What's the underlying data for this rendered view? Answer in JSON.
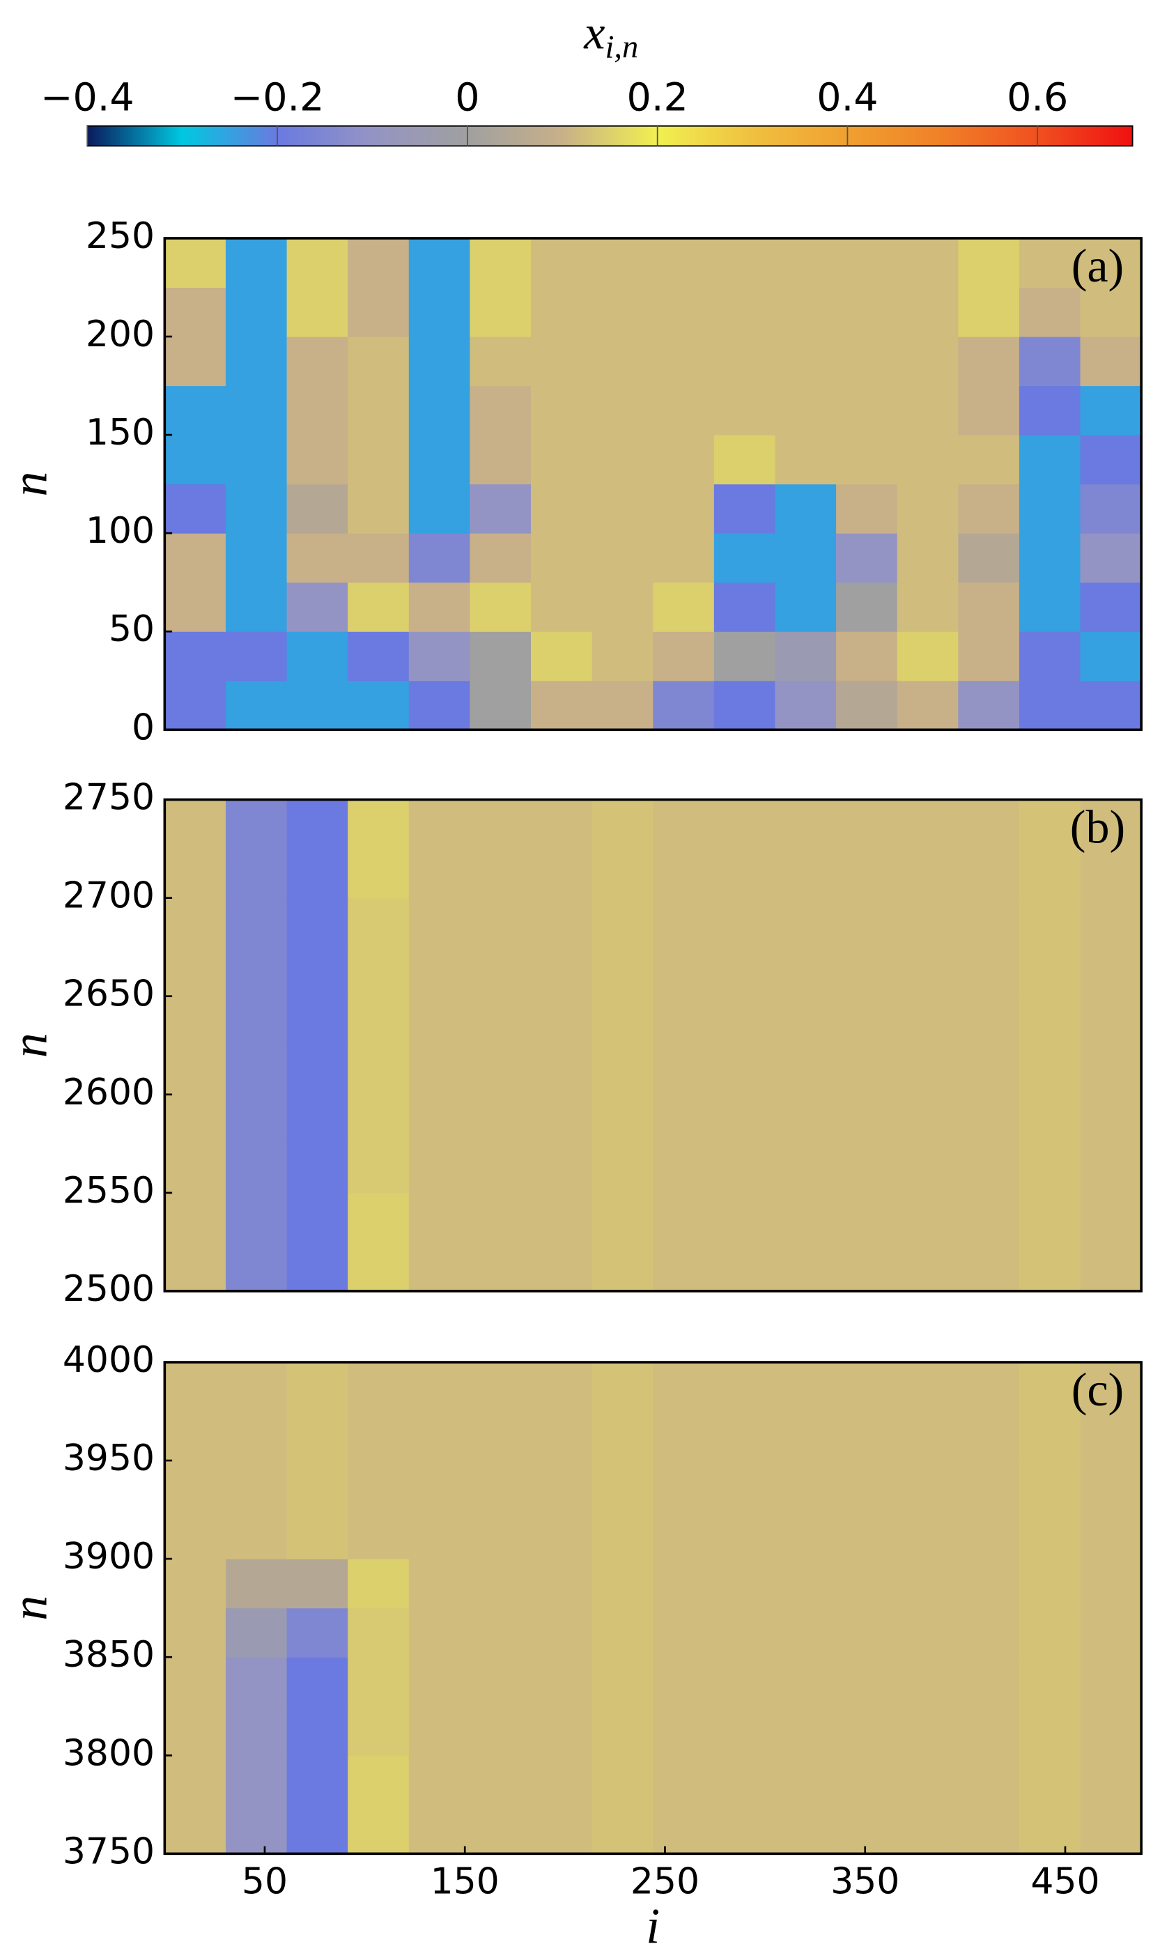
{
  "colorbar": {
    "label": "x",
    "label_sub": "i,n",
    "clim": [
      -0.4,
      0.7
    ],
    "ticks": [
      {
        "value": -0.4,
        "label": "−0.4"
      },
      {
        "value": -0.2,
        "label": "−0.2"
      },
      0,
      0.2,
      0.4,
      0.6
    ],
    "colormap": [
      "#0a1a5c",
      "#00c8e0",
      "#6a7ae0",
      "#9494c4",
      "#a0a0a0",
      "#c8b088",
      "#f0f050",
      "#f0c040",
      "#f0a030",
      "#f08028",
      "#f05020",
      "#f01010"
    ]
  },
  "chart_data": [
    {
      "type": "heatmap",
      "panel_label": "(a)",
      "ylabel": "n",
      "xlim": [
        0,
        488
      ],
      "ylim": [
        0,
        250
      ],
      "yticks": [
        0,
        50,
        100,
        150,
        200,
        250
      ],
      "xbins": [
        0,
        30.5,
        61,
        91.5,
        122,
        152.5,
        183,
        213.5,
        244,
        274.5,
        305,
        335.5,
        366,
        396.5,
        427,
        457.5,
        488
      ],
      "ybins": [
        0,
        25,
        50,
        75,
        100,
        125,
        150,
        175,
        200,
        225,
        250
      ],
      "z": [
        [
          -0.2,
          -0.25,
          -0.25,
          -0.25,
          -0.2,
          0.0,
          0.1,
          0.1,
          -0.15,
          -0.2,
          -0.1,
          0.05,
          0.1,
          -0.1,
          -0.2,
          -0.2
        ],
        [
          -0.2,
          -0.2,
          -0.25,
          -0.2,
          -0.1,
          0.0,
          0.15,
          0.12,
          0.1,
          0.0,
          -0.05,
          0.1,
          0.15,
          0.1,
          -0.2,
          -0.25
        ],
        [
          0.1,
          -0.25,
          -0.1,
          0.15,
          0.1,
          0.15,
          0.12,
          0.12,
          0.15,
          -0.2,
          -0.25,
          0.0,
          0.12,
          0.1,
          -0.25,
          -0.2
        ],
        [
          0.1,
          -0.25,
          0.1,
          0.1,
          -0.15,
          0.1,
          0.12,
          0.12,
          0.12,
          -0.25,
          -0.25,
          -0.1,
          0.12,
          0.05,
          -0.25,
          -0.1
        ],
        [
          -0.2,
          -0.25,
          0.05,
          0.12,
          -0.25,
          -0.1,
          0.12,
          0.12,
          0.12,
          -0.2,
          -0.25,
          0.1,
          0.12,
          0.1,
          -0.25,
          -0.15
        ],
        [
          -0.25,
          -0.25,
          0.1,
          0.12,
          -0.25,
          0.1,
          0.12,
          0.12,
          0.12,
          0.15,
          0.12,
          0.12,
          0.12,
          0.12,
          -0.25,
          -0.2
        ],
        [
          -0.25,
          -0.25,
          0.1,
          0.12,
          -0.25,
          0.1,
          0.12,
          0.12,
          0.12,
          0.12,
          0.12,
          0.12,
          0.12,
          0.1,
          -0.2,
          -0.25
        ],
        [
          0.1,
          -0.25,
          0.1,
          0.12,
          -0.25,
          0.12,
          0.12,
          0.12,
          0.12,
          0.12,
          0.12,
          0.12,
          0.12,
          0.1,
          -0.15,
          0.1
        ],
        [
          0.1,
          -0.25,
          0.15,
          0.1,
          -0.25,
          0.15,
          0.12,
          0.12,
          0.12,
          0.12,
          0.12,
          0.12,
          0.12,
          0.15,
          0.1,
          0.12
        ],
        [
          0.15,
          -0.25,
          0.15,
          0.1,
          -0.25,
          0.15,
          0.12,
          0.12,
          0.12,
          0.12,
          0.12,
          0.12,
          0.12,
          0.15,
          0.12,
          0.12
        ]
      ]
    },
    {
      "type": "heatmap",
      "panel_label": "(b)",
      "ylabel": "n",
      "xlim": [
        0,
        488
      ],
      "ylim": [
        2500,
        2750
      ],
      "yticks": [
        2500,
        2550,
        2600,
        2650,
        2700,
        2750
      ],
      "xbins": [
        0,
        30.5,
        61,
        91.5,
        122,
        152.5,
        183,
        213.5,
        244,
        274.5,
        305,
        335.5,
        366,
        396.5,
        427,
        457.5,
        488
      ],
      "ybins": [
        2500,
        2525,
        2550,
        2575,
        2600,
        2625,
        2650,
        2675,
        2700,
        2725,
        2750
      ],
      "z": [
        [
          0.12,
          -0.15,
          -0.2,
          0.15,
          0.12,
          0.12,
          0.12,
          0.13,
          0.12,
          0.12,
          0.12,
          0.12,
          0.12,
          0.12,
          0.13,
          0.12
        ],
        [
          0.12,
          -0.15,
          -0.2,
          0.15,
          0.12,
          0.12,
          0.12,
          0.13,
          0.12,
          0.12,
          0.12,
          0.12,
          0.12,
          0.12,
          0.13,
          0.12
        ],
        [
          0.12,
          -0.15,
          -0.2,
          0.14,
          0.12,
          0.12,
          0.12,
          0.13,
          0.12,
          0.12,
          0.12,
          0.12,
          0.12,
          0.12,
          0.13,
          0.12
        ],
        [
          0.12,
          -0.15,
          -0.2,
          0.14,
          0.12,
          0.12,
          0.12,
          0.13,
          0.12,
          0.12,
          0.12,
          0.12,
          0.12,
          0.12,
          0.13,
          0.12
        ],
        [
          0.12,
          -0.15,
          -0.2,
          0.14,
          0.12,
          0.12,
          0.12,
          0.13,
          0.12,
          0.12,
          0.12,
          0.12,
          0.12,
          0.12,
          0.13,
          0.12
        ],
        [
          0.12,
          -0.15,
          -0.2,
          0.14,
          0.12,
          0.12,
          0.12,
          0.13,
          0.12,
          0.12,
          0.12,
          0.12,
          0.12,
          0.12,
          0.13,
          0.12
        ],
        [
          0.12,
          -0.15,
          -0.2,
          0.14,
          0.12,
          0.12,
          0.12,
          0.13,
          0.12,
          0.12,
          0.12,
          0.12,
          0.12,
          0.12,
          0.13,
          0.12
        ],
        [
          0.12,
          -0.15,
          -0.2,
          0.14,
          0.12,
          0.12,
          0.12,
          0.13,
          0.12,
          0.12,
          0.12,
          0.12,
          0.12,
          0.12,
          0.13,
          0.12
        ],
        [
          0.12,
          -0.15,
          -0.2,
          0.15,
          0.12,
          0.12,
          0.12,
          0.13,
          0.12,
          0.12,
          0.12,
          0.12,
          0.12,
          0.12,
          0.13,
          0.12
        ],
        [
          0.12,
          -0.15,
          -0.2,
          0.15,
          0.12,
          0.12,
          0.12,
          0.13,
          0.12,
          0.12,
          0.12,
          0.12,
          0.12,
          0.12,
          0.13,
          0.12
        ]
      ]
    },
    {
      "type": "heatmap",
      "panel_label": "(c)",
      "ylabel": "n",
      "xlabel": "i",
      "xlim": [
        0,
        488
      ],
      "ylim": [
        3750,
        4000
      ],
      "yticks": [
        3750,
        3800,
        3850,
        3900,
        3950,
        4000
      ],
      "xticks": [
        50,
        150,
        250,
        350,
        450
      ],
      "xbins": [
        0,
        30.5,
        61,
        91.5,
        122,
        152.5,
        183,
        213.5,
        244,
        274.5,
        305,
        335.5,
        366,
        396.5,
        427,
        457.5,
        488
      ],
      "ybins": [
        3750,
        3775,
        3800,
        3825,
        3850,
        3875,
        3900,
        3925,
        3950,
        3975,
        4000
      ],
      "z": [
        [
          0.12,
          -0.1,
          -0.2,
          0.15,
          0.12,
          0.12,
          0.12,
          0.13,
          0.12,
          0.12,
          0.12,
          0.12,
          0.12,
          0.12,
          0.13,
          0.12
        ],
        [
          0.12,
          -0.1,
          -0.2,
          0.15,
          0.12,
          0.12,
          0.12,
          0.13,
          0.12,
          0.12,
          0.12,
          0.12,
          0.12,
          0.12,
          0.13,
          0.12
        ],
        [
          0.12,
          -0.1,
          -0.2,
          0.14,
          0.12,
          0.12,
          0.12,
          0.13,
          0.12,
          0.12,
          0.12,
          0.12,
          0.12,
          0.12,
          0.13,
          0.12
        ],
        [
          0.12,
          -0.1,
          -0.2,
          0.14,
          0.12,
          0.12,
          0.12,
          0.13,
          0.12,
          0.12,
          0.12,
          0.12,
          0.12,
          0.12,
          0.13,
          0.12
        ],
        [
          0.12,
          -0.05,
          -0.15,
          0.14,
          0.12,
          0.12,
          0.12,
          0.13,
          0.12,
          0.12,
          0.12,
          0.12,
          0.12,
          0.12,
          0.13,
          0.12
        ],
        [
          0.12,
          0.05,
          0.05,
          0.15,
          0.12,
          0.12,
          0.12,
          0.13,
          0.12,
          0.12,
          0.12,
          0.12,
          0.12,
          0.12,
          0.13,
          0.12
        ],
        [
          0.12,
          0.12,
          0.13,
          0.12,
          0.12,
          0.12,
          0.12,
          0.13,
          0.12,
          0.12,
          0.12,
          0.12,
          0.12,
          0.12,
          0.13,
          0.12
        ],
        [
          0.12,
          0.12,
          0.13,
          0.12,
          0.12,
          0.12,
          0.12,
          0.13,
          0.12,
          0.12,
          0.12,
          0.12,
          0.12,
          0.12,
          0.13,
          0.12
        ],
        [
          0.12,
          0.12,
          0.13,
          0.12,
          0.12,
          0.12,
          0.12,
          0.13,
          0.12,
          0.12,
          0.12,
          0.12,
          0.12,
          0.12,
          0.13,
          0.12
        ],
        [
          0.12,
          0.12,
          0.13,
          0.12,
          0.12,
          0.12,
          0.12,
          0.13,
          0.12,
          0.12,
          0.12,
          0.12,
          0.12,
          0.12,
          0.13,
          0.12
        ]
      ]
    }
  ]
}
